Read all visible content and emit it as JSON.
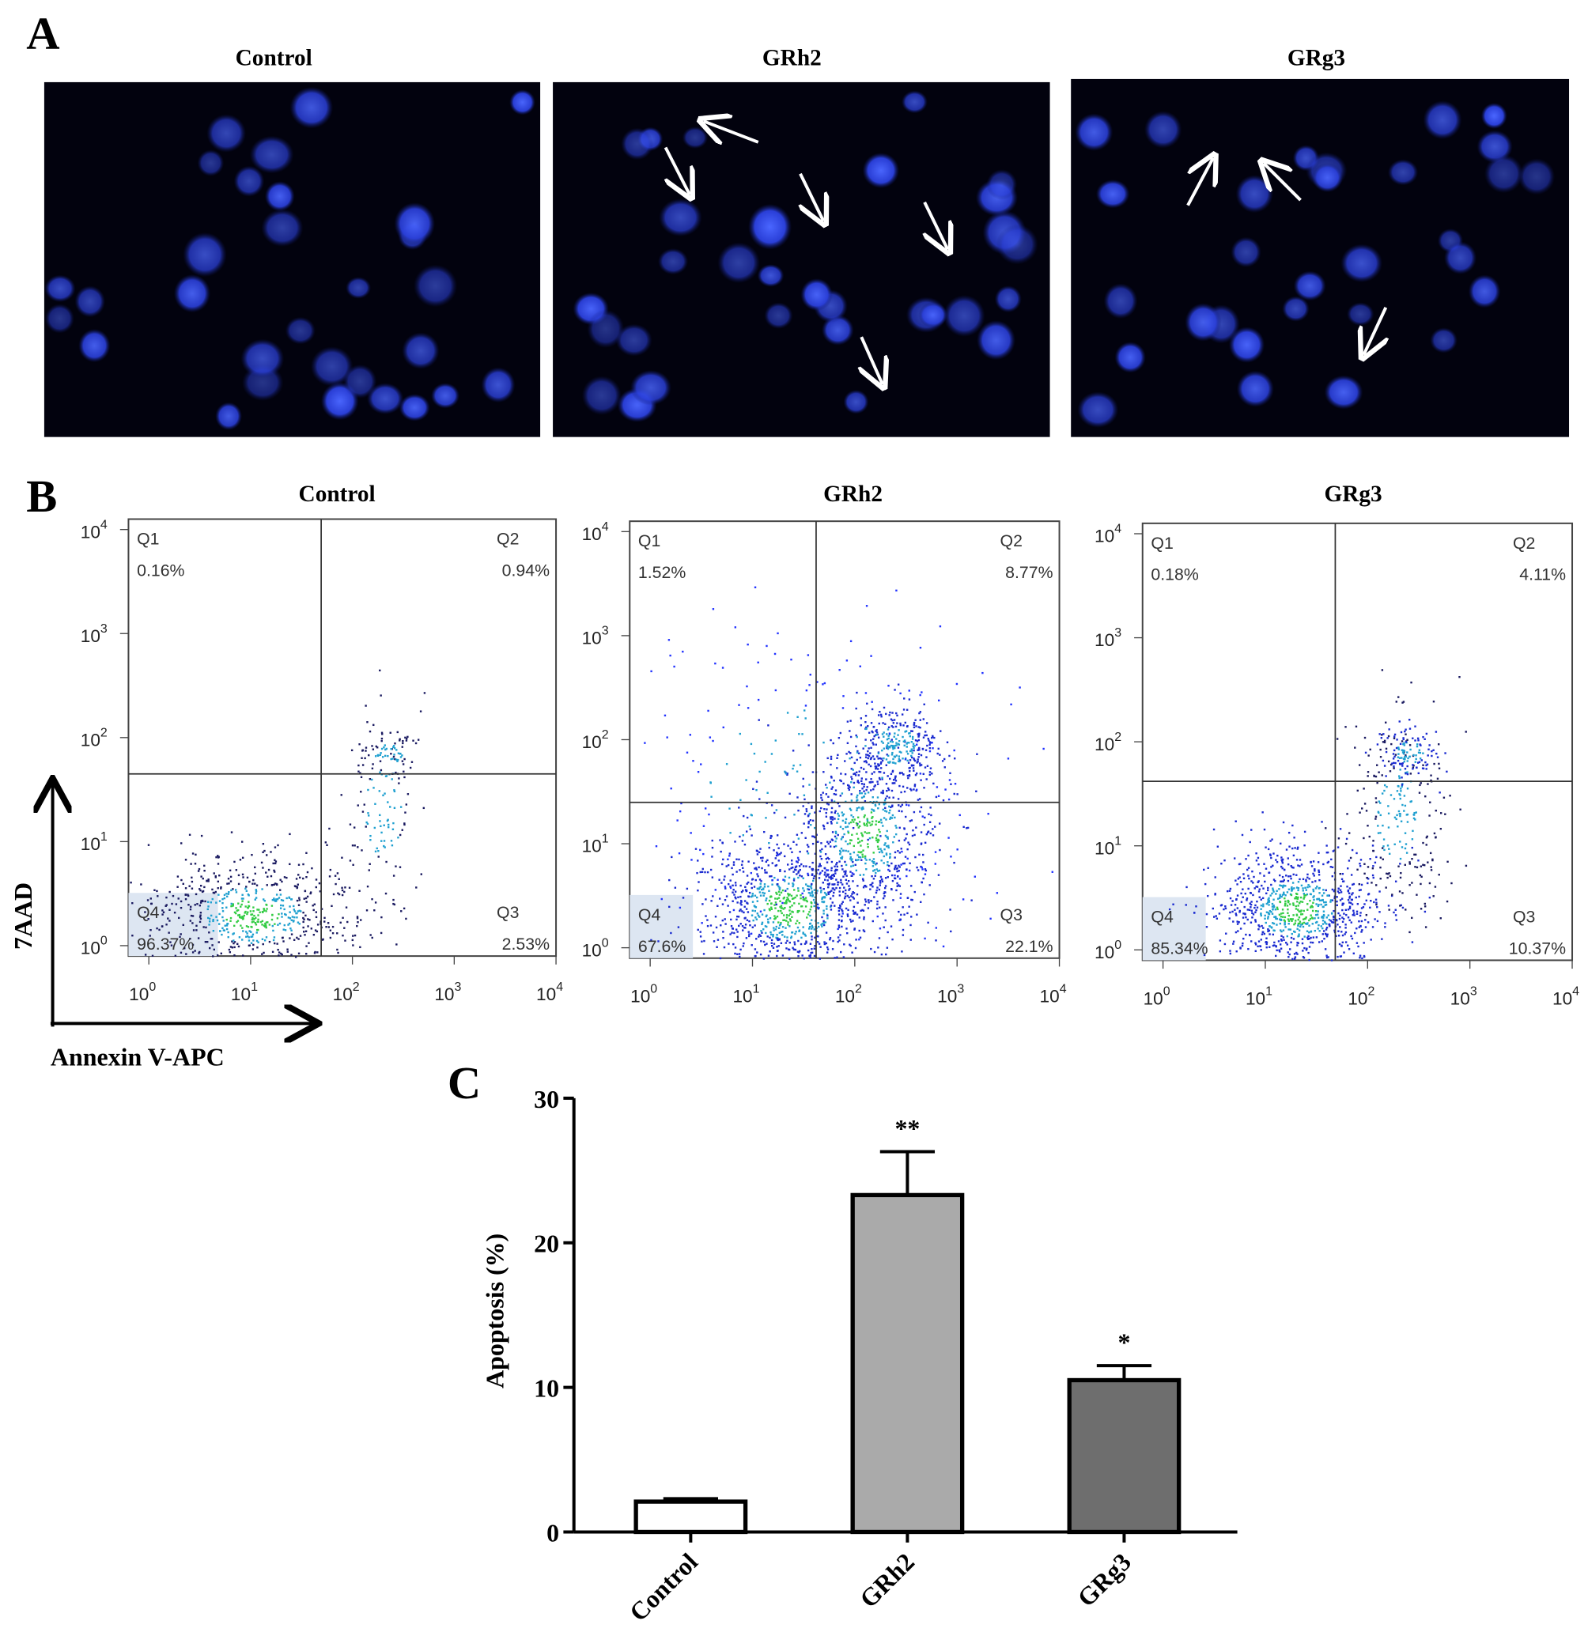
{
  "panel_a": {
    "label": "A",
    "titles": [
      "Control",
      "GRh2",
      "GRg3"
    ]
  },
  "panel_b": {
    "label": "B",
    "plots": [
      {
        "title": "Control",
        "q1": "Q1",
        "q1_pct": "0.16%",
        "q2": "Q2",
        "q2_pct": "0.94%",
        "q3": "Q3",
        "q3_pct": "2.53%",
        "q4": "Q4",
        "q4_pct": "96.37%"
      },
      {
        "title": "GRh2",
        "q1": "Q1",
        "q1_pct": "1.52%",
        "q2": "Q2",
        "q2_pct": "8.77%",
        "q3": "Q3",
        "q3_pct": "22.1%",
        "q4": "Q4",
        "q4_pct": "67.6%"
      },
      {
        "title": "GRg3",
        "q1": "Q1",
        "q1_pct": "0.18%",
        "q2": "Q2",
        "q2_pct": "4.11%",
        "q3": "Q3",
        "q3_pct": "10.37%",
        "q4": "Q4",
        "q4_pct": "85.34%"
      }
    ],
    "tick_base": "10",
    "tick_exponents": [
      0,
      1,
      2,
      3,
      4
    ],
    "ylabel": "7AAD",
    "xlabel": "Annexin V-APC"
  },
  "panel_c": {
    "label": "C"
  },
  "chart_data": {
    "type": "bar",
    "ylabel": "Apoptosis (%)",
    "categories": [
      "Control",
      "GRh2",
      "GRg3"
    ],
    "values": [
      2.1,
      23.3,
      10.5
    ],
    "errors": [
      0.2,
      3.0,
      1.0
    ],
    "significance": [
      null,
      "**",
      "*"
    ],
    "colors": [
      "#ffffff",
      "#aaaaaa",
      "#6e6e6e"
    ],
    "ylim": [
      0,
      30
    ],
    "yticks": [
      0,
      10,
      20,
      30
    ]
  }
}
